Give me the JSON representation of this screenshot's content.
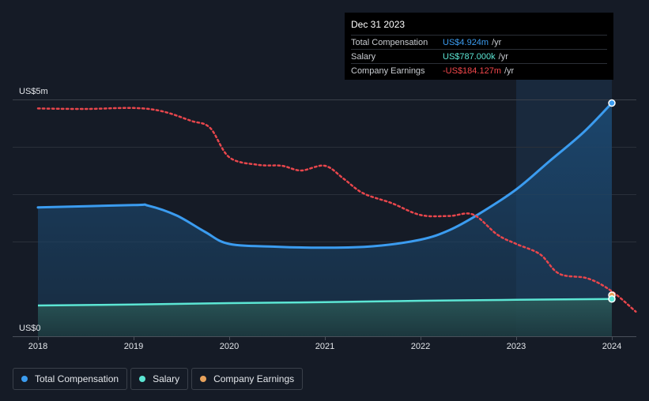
{
  "chart_data": {
    "type": "line",
    "title": "",
    "xlabel": "",
    "ylabel": "",
    "y_axis_labels": [
      "US$5m",
      "US$0"
    ],
    "ylim": [
      0,
      5.0
    ],
    "xlim": [
      2018,
      2024.25
    ],
    "x_ticks": [
      "2018",
      "2019",
      "2020",
      "2021",
      "2022",
      "2023",
      "2024"
    ],
    "x_tick_values": [
      2018,
      2019,
      2020,
      2021,
      2022,
      2023,
      2024
    ],
    "highlight_range": [
      2023.0,
      2024.0
    ],
    "series": [
      {
        "name": "Total Compensation",
        "color": "#3b9cf0",
        "x": [
          2018,
          2019,
          2019.15,
          2019.45,
          2019.75,
          2020,
          2020.5,
          2021,
          2021.5,
          2022,
          2022.3,
          2022.6,
          2023,
          2023.35,
          2023.7,
          2024
        ],
        "values": [
          2.72,
          2.77,
          2.76,
          2.55,
          2.2,
          1.95,
          1.89,
          1.87,
          1.9,
          2.04,
          2.24,
          2.57,
          3.1,
          3.7,
          4.3,
          4.924
        ]
      },
      {
        "name": "Salary",
        "color": "#5ce6d4",
        "x": [
          2018,
          2019,
          2020,
          2021,
          2022,
          2023,
          2024
        ],
        "values": [
          0.65,
          0.67,
          0.7,
          0.72,
          0.75,
          0.77,
          0.787
        ]
      },
      {
        "name": "Company Earnings",
        "color": "#e8464c",
        "note": "plotted on a secondary (unlabeled) scale",
        "x": [
          2018,
          2018.5,
          2019,
          2019.3,
          2019.6,
          2019.8,
          2020,
          2020.3,
          2020.55,
          2020.75,
          2021,
          2021.2,
          2021.4,
          2021.7,
          2022,
          2022.3,
          2022.55,
          2022.8,
          2023,
          2023.25,
          2023.45,
          2023.75,
          2024,
          2024.25
        ],
        "values": [
          4.81,
          4.8,
          4.82,
          4.75,
          4.55,
          4.4,
          3.78,
          3.62,
          3.6,
          3.5,
          3.6,
          3.32,
          3.02,
          2.81,
          2.56,
          2.54,
          2.57,
          2.15,
          1.95,
          1.73,
          1.32,
          1.22,
          0.95,
          0.52
        ]
      }
    ]
  },
  "tooltip": {
    "date": "Dec 31 2023",
    "rows": [
      {
        "label": "Total Compensation",
        "value": "US$4.924m",
        "unit": "/yr"
      },
      {
        "label": "Salary",
        "value": "US$787.000k",
        "unit": "/yr"
      },
      {
        "label": "Company Earnings",
        "value": "-US$184.127m",
        "unit": "/yr"
      }
    ]
  },
  "legend": [
    {
      "label": "Total Compensation",
      "color": "#3b9cf0"
    },
    {
      "label": "Salary",
      "color": "#5ce6d4"
    },
    {
      "label": "Company Earnings",
      "color": "#e8a25c"
    }
  ]
}
